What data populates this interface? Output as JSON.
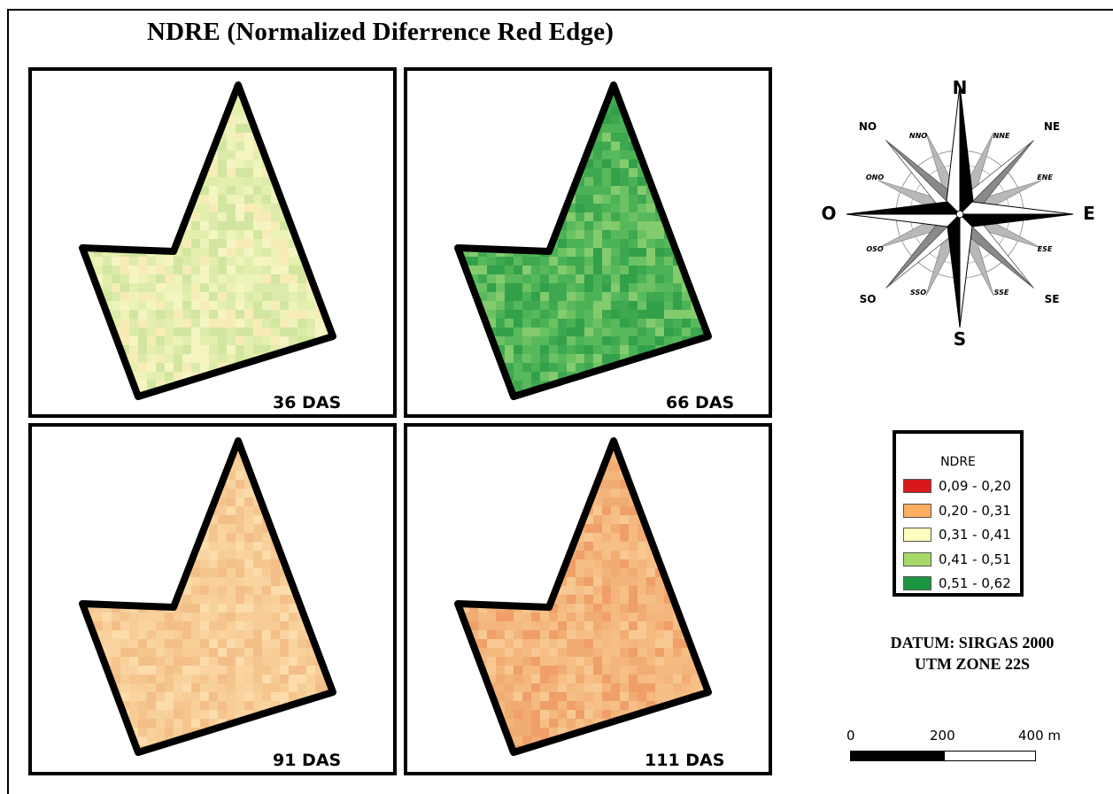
{
  "title": "NDRE (Normalized Diferrence Red Edge)",
  "panels": [
    {
      "label": "36 DAS",
      "palette": [
        "#e4efae",
        "#dcebaa",
        "#edf3b9",
        "#f5f5c2",
        "#d2e6a0",
        "#f8ecb6"
      ]
    },
    {
      "label": "66 DAS",
      "palette": [
        "#3ea850",
        "#4cb256",
        "#58b95c",
        "#33a04a",
        "#6cc263",
        "#84cb6e"
      ]
    },
    {
      "label": "91 DAS",
      "palette": [
        "#f7cc96",
        "#f9d4a0",
        "#f5c58e",
        "#fbdcaa",
        "#f4be88",
        "#f8d09a"
      ]
    },
    {
      "label": "111 DAS",
      "palette": [
        "#f3b57b",
        "#f1ac72",
        "#f6bf86",
        "#ef9f67",
        "#f4ba80",
        "#f7c891"
      ]
    }
  ],
  "compass": {
    "n": "N",
    "s": "S",
    "e": "E",
    "o": "O",
    "ne": "NE",
    "no": "NO",
    "se": "SE",
    "so": "SO",
    "nne": "NNE",
    "nno": "NNO",
    "ene": "ENE",
    "ono": "ONO",
    "ese": "ESE",
    "oso": "OSO",
    "sse": "SSE",
    "sso": "SSO"
  },
  "legend": {
    "title": "NDRE",
    "items": [
      {
        "label": "0,09 - 0,20",
        "color": "#d7191c"
      },
      {
        "label": "0,20 - 0,31",
        "color": "#fdae61"
      },
      {
        "label": "0,31 - 0,41",
        "color": "#ffffc0"
      },
      {
        "label": "0,41 - 0,51",
        "color": "#a6d96a"
      },
      {
        "label": "0,51 - 0,62",
        "color": "#1a9641"
      }
    ]
  },
  "datum": {
    "line1": "DATUM: SIRGAS 2000",
    "line2": "UTM ZONE 22S"
  },
  "scale": {
    "labels": [
      "0",
      "200",
      "400 m"
    ]
  }
}
